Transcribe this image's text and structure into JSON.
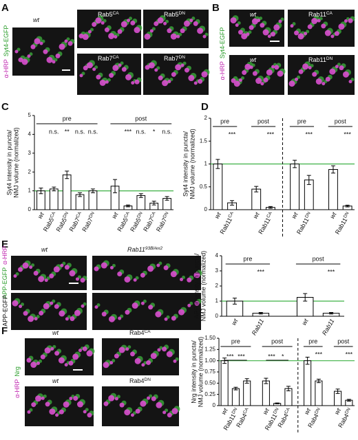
{
  "panels": [
    {
      "letter": "A",
      "channels": [
        {
          "text": "α-HRP",
          "color": "#c026b0"
        },
        {
          "text": "Syt4-EGFP",
          "color": "#2a9d2a"
        }
      ],
      "images": [
        {
          "label": {
            "base": "wt",
            "italic": true
          }
        },
        {
          "label": {
            "base": "Rab5",
            "sup": "CA"
          }
        },
        {
          "label": {
            "base": "Rab5",
            "sup": "DN"
          }
        },
        {
          "label": {
            "base": "Rab7",
            "sup": "CA"
          }
        },
        {
          "label": {
            "base": "Rab7",
            "sup": "DN"
          }
        }
      ]
    },
    {
      "letter": "B",
      "channels": [
        {
          "text": "α-HRP",
          "color": "#c026b0"
        },
        {
          "text": "Syt4-EGFP",
          "color": "#2a9d2a"
        }
      ],
      "images": [
        {
          "label": {
            "base": "wt",
            "italic": true
          }
        },
        {
          "label": {
            "base": "Rab11",
            "sup": "CA"
          }
        },
        {
          "label": {
            "base": "wt",
            "italic": true
          }
        },
        {
          "label": {
            "base": "Rab11",
            "sup": "DN"
          }
        }
      ]
    },
    {
      "letter": "C"
    },
    {
      "letter": "D"
    },
    {
      "letter": "E",
      "channels": [
        {
          "text": "APP-EGFP",
          "color": "#2a9d2a"
        },
        {
          "text": "α-HRP",
          "color": "#c026b0"
        }
      ],
      "sub_channel": "APP-EGFP",
      "images": [
        {
          "label": {
            "base": "wt",
            "italic": true
          }
        },
        {
          "label": {
            "base": "Rab11",
            "sup": "93Bi/ex2",
            "italic": true
          }
        }
      ]
    },
    {
      "letter": "F",
      "channels": [
        {
          "text": "α-HRP",
          "color": "#c026b0"
        },
        {
          "text": "Nrg",
          "color": "#2a9d2a"
        }
      ],
      "images": [
        {
          "label": {
            "base": "wt",
            "italic": true
          }
        },
        {
          "label": {
            "base": "Rab4",
            "sup": "CA"
          }
        },
        {
          "label": {
            "base": "wt",
            "italic": true
          }
        },
        {
          "label": {
            "base": "Rab4",
            "sup": "DN"
          }
        }
      ]
    }
  ],
  "chart_data": [
    {
      "type": "bar",
      "y_label": [
        "Syt4 intensity in puncta/",
        "NMJ volume (normalized)"
      ],
      "ylim": [
        0,
        5
      ],
      "yticks": [
        0,
        1,
        2,
        3,
        4,
        5
      ],
      "reference_line": 1,
      "reference_color": "#3cb043",
      "groups": [
        {
          "label": "pre",
          "categories": [
            {
              "base": "wt",
              "italic": true
            },
            {
              "base": "Rab5",
              "sup": "CA"
            },
            {
              "base": "Rab5",
              "sup": "DN"
            },
            {
              "base": "Rab7",
              "sup": "CA"
            },
            {
              "base": "Rab7",
              "sup": "DN"
            }
          ],
          "values": [
            1.0,
            1.1,
            1.85,
            0.8,
            1.0
          ],
          "errors": [
            0.15,
            0.1,
            0.2,
            0.1,
            0.1
          ],
          "significance": [
            null,
            "n.s.",
            "**",
            "n.s.",
            "n.s."
          ]
        },
        {
          "label": "post",
          "categories": [
            {
              "base": "wt",
              "italic": true
            },
            {
              "base": "Rab5",
              "sup": "CA"
            },
            {
              "base": "Rab5",
              "sup": "DN"
            },
            {
              "base": "Rab7",
              "sup": "CA"
            },
            {
              "base": "Rab7",
              "sup": "DN"
            }
          ],
          "values": [
            1.25,
            0.2,
            0.75,
            0.35,
            0.6
          ],
          "errors": [
            0.35,
            0.05,
            0.1,
            0.1,
            0.1
          ],
          "significance": [
            null,
            "***",
            "n.s.",
            "*",
            "n.s."
          ]
        }
      ]
    },
    {
      "type": "bar",
      "y_label": [
        "Syt4 intensity in puncta/",
        "NMJ volume (normalized)"
      ],
      "ylim": [
        0,
        2
      ],
      "yticks": [
        0,
        0.5,
        1,
        1.5,
        2
      ],
      "reference_line": 1,
      "reference_color": "#3cb043",
      "groups": [
        {
          "label": "pre",
          "categories": [
            {
              "base": "wt",
              "italic": true
            },
            {
              "base": "Rab11",
              "sup": "CA"
            }
          ],
          "values": [
            1.0,
            0.15
          ],
          "errors": [
            0.1,
            0.05
          ],
          "significance": [
            null,
            "***"
          ]
        },
        {
          "label": "post",
          "categories": [
            {
              "base": "wt",
              "italic": true
            },
            {
              "base": "Rab11",
              "sup": "CA"
            }
          ],
          "values": [
            0.45,
            0.05
          ],
          "errors": [
            0.06,
            0.02
          ],
          "significance": [
            null,
            "***"
          ]
        },
        {
          "label": "pre",
          "categories": [
            {
              "base": "wt",
              "italic": true
            },
            {
              "base": "Rab11",
              "sup": "DN"
            }
          ],
          "values": [
            1.0,
            0.65
          ],
          "errors": [
            0.08,
            0.1
          ],
          "significance": [
            null,
            "***"
          ]
        },
        {
          "label": "post",
          "categories": [
            {
              "base": "wt",
              "italic": true
            },
            {
              "base": "Rab11",
              "sup": "DN"
            }
          ],
          "values": [
            0.88,
            0.08
          ],
          "errors": [
            0.08,
            0.02
          ],
          "significance": [
            null,
            "***"
          ]
        }
      ]
    },
    {
      "type": "bar",
      "y_label": [
        "APP intensity in puncta/",
        "NMJ volume (normalized)"
      ],
      "ylim": [
        0,
        4
      ],
      "yticks": [
        0,
        1,
        2,
        3,
        4
      ],
      "reference_line": 1,
      "reference_color": "#3cb043",
      "groups": [
        {
          "label": "pre",
          "categories": [
            {
              "base": "wt",
              "italic": true
            },
            {
              "base": "Rab11",
              "italic": true
            }
          ],
          "values": [
            1.0,
            0.2
          ],
          "errors": [
            0.2,
            0.05
          ],
          "significance": [
            null,
            "***"
          ]
        },
        {
          "label": "post",
          "categories": [
            {
              "base": "wt",
              "italic": true
            },
            {
              "base": "Rab11",
              "italic": true
            }
          ],
          "values": [
            1.25,
            0.2
          ],
          "errors": [
            0.25,
            0.05
          ],
          "significance": [
            null,
            "***"
          ]
        }
      ]
    },
    {
      "type": "bar",
      "y_label": [
        "Nrg intensity in puncta/",
        "NMJ volume (normalized)"
      ],
      "ylim": [
        0,
        1.5
      ],
      "yticks": [
        0,
        {
          "value": 0.25,
          "label": "0.25"
        },
        {
          "value": 0.5,
          "label": "0.50"
        },
        {
          "value": 0.75,
          "label": "0.75"
        },
        {
          "value": 1,
          "label": "1.00"
        },
        {
          "value": 1.25,
          "label": "1.25"
        },
        {
          "value": 1.5,
          "label": "1.50"
        }
      ],
      "reference_line": 1,
      "reference_color": "#3cb043",
      "groups": [
        {
          "label": "pre",
          "categories": [
            {
              "base": "wt",
              "italic": true
            },
            {
              "base": "Rab11",
              "sup": "DN"
            },
            {
              "base": "Rab4",
              "sup": "CA"
            }
          ],
          "values": [
            1.0,
            0.38,
            0.55
          ],
          "errors": [
            0.06,
            0.03,
            0.05
          ],
          "brackets": [
            "***",
            "***"
          ]
        },
        {
          "label": "post",
          "categories": [
            {
              "base": "wt",
              "italic": true
            },
            {
              "base": "Rab11",
              "sup": "DN"
            },
            {
              "base": "Rab4",
              "sup": "CA"
            }
          ],
          "values": [
            0.55,
            0.05,
            0.38
          ],
          "errors": [
            0.06,
            0.01,
            0.05
          ],
          "brackets": [
            "***",
            "*"
          ]
        },
        {
          "label": "pre",
          "categories": [
            {
              "base": "wt",
              "italic": true
            },
            {
              "base": "Rab4",
              "sup": "DN"
            }
          ],
          "values": [
            1.0,
            0.55
          ],
          "errors": [
            0.08,
            0.04
          ],
          "significance": [
            null,
            "***"
          ]
        },
        {
          "label": "post",
          "categories": [
            {
              "base": "wt",
              "italic": true
            },
            {
              "base": "Rab4",
              "sup": "DN"
            }
          ],
          "values": [
            0.32,
            0.12
          ],
          "errors": [
            0.05,
            0.02
          ],
          "significance": [
            null,
            "***"
          ]
        }
      ]
    }
  ]
}
